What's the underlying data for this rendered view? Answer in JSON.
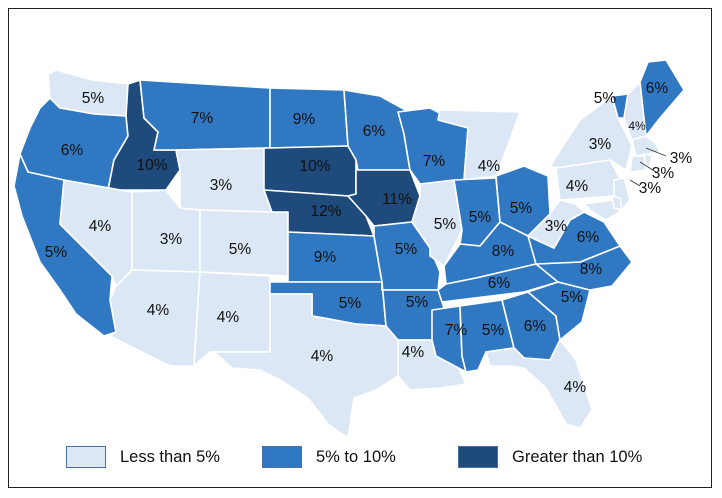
{
  "colors": {
    "low": "#dbe7f4",
    "mid": "#3178c2",
    "high": "#1e4a7c",
    "border": "#ffffff"
  },
  "legend": [
    {
      "label": "Less than 5%",
      "category": "low"
    },
    {
      "label": "5% to 10%",
      "category": "mid"
    },
    {
      "label": "Greater than 10%",
      "category": "high"
    }
  ],
  "states": [
    {
      "state": "WA",
      "value": "5%",
      "category": "low"
    },
    {
      "state": "OR",
      "value": "6%",
      "category": "mid"
    },
    {
      "state": "CA",
      "value": "5%",
      "category": "mid"
    },
    {
      "state": "ID",
      "value": "10%",
      "category": "high"
    },
    {
      "state": "NV",
      "value": "4%",
      "category": "low"
    },
    {
      "state": "UT",
      "value": "3%",
      "category": "low"
    },
    {
      "state": "AZ",
      "value": "4%",
      "category": "low"
    },
    {
      "state": "MT",
      "value": "7%",
      "category": "mid"
    },
    {
      "state": "WY",
      "value": "3%",
      "category": "low"
    },
    {
      "state": "CO",
      "value": "5%",
      "category": "low"
    },
    {
      "state": "NM",
      "value": "4%",
      "category": "low"
    },
    {
      "state": "ND",
      "value": "9%",
      "category": "mid"
    },
    {
      "state": "SD",
      "value": "10%",
      "category": "high"
    },
    {
      "state": "NE",
      "value": "12%",
      "category": "high"
    },
    {
      "state": "KS",
      "value": "9%",
      "category": "mid"
    },
    {
      "state": "OK",
      "value": "5%",
      "category": "mid"
    },
    {
      "state": "TX",
      "value": "4%",
      "category": "low"
    },
    {
      "state": "MN",
      "value": "6%",
      "category": "mid"
    },
    {
      "state": "IA",
      "value": "11%",
      "category": "high"
    },
    {
      "state": "MO",
      "value": "5%",
      "category": "mid"
    },
    {
      "state": "AR",
      "value": "5%",
      "category": "mid"
    },
    {
      "state": "LA",
      "value": "4%",
      "category": "low"
    },
    {
      "state": "WI",
      "value": "7%",
      "category": "mid"
    },
    {
      "state": "IL",
      "value": "5%",
      "category": "low"
    },
    {
      "state": "MI",
      "value": "4%",
      "category": "low"
    },
    {
      "state": "IN",
      "value": "5%",
      "category": "mid"
    },
    {
      "state": "OH",
      "value": "5%",
      "category": "mid"
    },
    {
      "state": "KY",
      "value": "8%",
      "category": "mid"
    },
    {
      "state": "TN",
      "value": "6%",
      "category": "mid"
    },
    {
      "state": "MS",
      "value": "7%",
      "category": "mid"
    },
    {
      "state": "AL",
      "value": "5%",
      "category": "mid"
    },
    {
      "state": "GA",
      "value": "6%",
      "category": "mid"
    },
    {
      "state": "FL",
      "value": "4%",
      "category": "low"
    },
    {
      "state": "SC",
      "value": "5%",
      "category": "mid"
    },
    {
      "state": "NC",
      "value": "8%",
      "category": "mid"
    },
    {
      "state": "VA",
      "value": "6%",
      "category": "mid"
    },
    {
      "state": "WV",
      "value": "3%",
      "category": "low"
    },
    {
      "state": "PA",
      "value": "4%",
      "category": "low"
    },
    {
      "state": "NY",
      "value": "3%",
      "category": "low"
    },
    {
      "state": "VT",
      "value": "5%",
      "category": "mid"
    },
    {
      "state": "NH",
      "value": "4%",
      "category": "low"
    },
    {
      "state": "ME",
      "value": "6%",
      "category": "mid"
    },
    {
      "state": "MA",
      "value": "3%",
      "category": "low"
    },
    {
      "state": "CT",
      "value": "3%",
      "category": "low"
    },
    {
      "state": "NJ",
      "value": "3%",
      "category": "low"
    },
    {
      "state": "MD",
      "value": "",
      "category": "low"
    },
    {
      "state": "DE",
      "value": "",
      "category": "low"
    },
    {
      "state": "RI",
      "value": "",
      "category": "low"
    }
  ]
}
